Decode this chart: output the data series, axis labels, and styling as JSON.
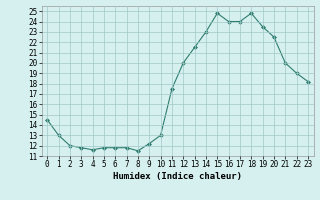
{
  "x": [
    0,
    1,
    2,
    3,
    4,
    5,
    6,
    7,
    8,
    9,
    10,
    11,
    12,
    13,
    14,
    15,
    16,
    17,
    18,
    19,
    20,
    21,
    22,
    23
  ],
  "y": [
    14.5,
    13.0,
    12.0,
    11.8,
    11.6,
    11.8,
    11.8,
    11.8,
    11.5,
    12.2,
    13.0,
    17.5,
    20.0,
    21.5,
    23.0,
    24.8,
    24.0,
    24.0,
    24.8,
    23.5,
    22.5,
    20.0,
    19.0,
    18.2
  ],
  "line_color": "#2e7d6e",
  "marker": "D",
  "marker_size": 2,
  "bg_color": "#d6f0f0",
  "grid_color": "#a0c8c8",
  "xlabel": "Humidex (Indice chaleur)",
  "xlim": [
    -0.5,
    23.5
  ],
  "ylim": [
    11.0,
    25.5
  ],
  "yticks": [
    11,
    12,
    13,
    14,
    15,
    16,
    17,
    18,
    19,
    20,
    21,
    22,
    23,
    24,
    25
  ],
  "xticks": [
    0,
    1,
    2,
    3,
    4,
    5,
    6,
    7,
    8,
    9,
    10,
    11,
    12,
    13,
    14,
    15,
    16,
    17,
    18,
    19,
    20,
    21,
    22,
    23
  ],
  "label_fontsize": 6.5,
  "tick_fontsize": 5.5
}
